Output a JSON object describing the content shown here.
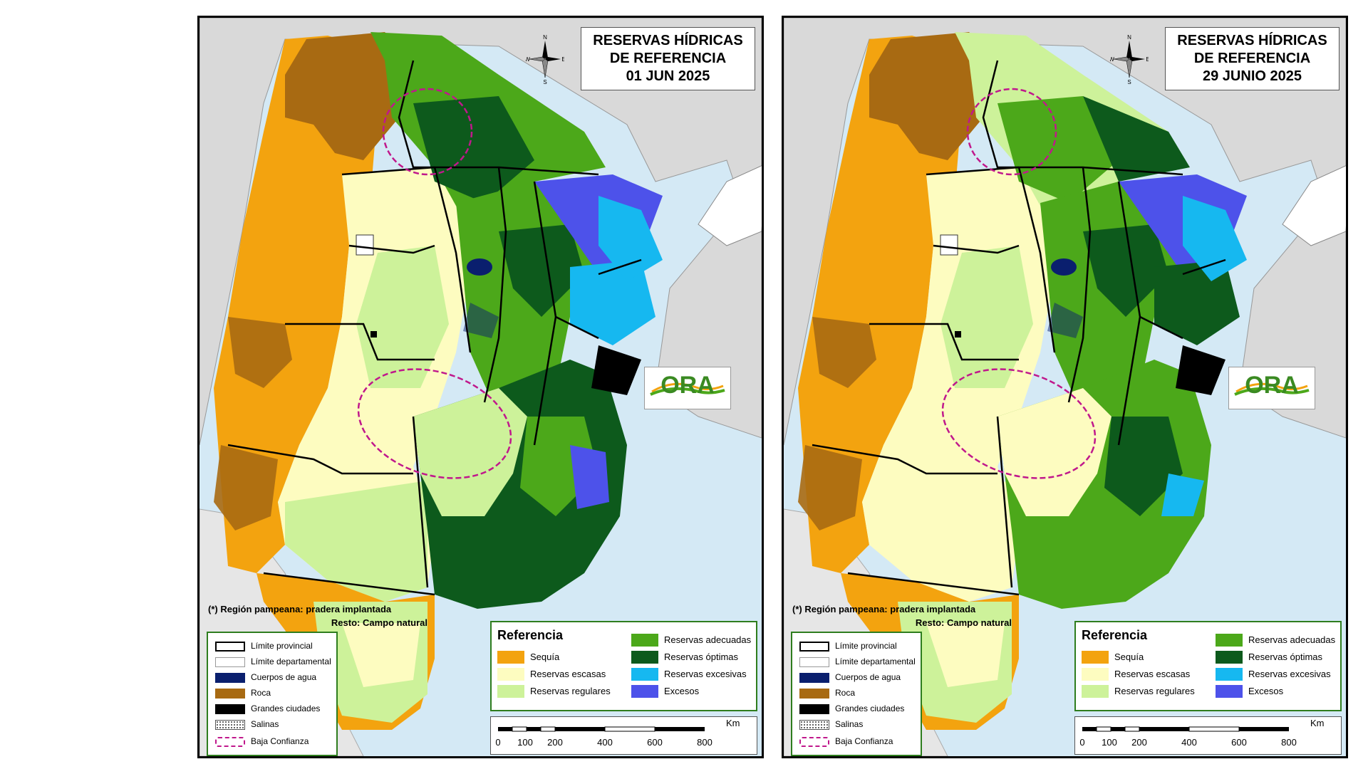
{
  "maps": [
    {
      "title_lines": [
        "RESERVAS HÍDRICAS",
        "DE REFERENCIA",
        "01 JUN 2025"
      ]
    },
    {
      "title_lines": [
        "RESERVAS HÍDRICAS",
        "DE REFERENCIA",
        "29 JUNIO 2025"
      ]
    }
  ],
  "compass": {
    "n": "N",
    "s": "S",
    "e": "E",
    "w": "W"
  },
  "logo_text": "ORA",
  "note": {
    "line1": "(*) Región pampeana: pradera implantada",
    "line2": "Resto: Campo natural"
  },
  "legend_boundaries": [
    {
      "label": "Límite provincial",
      "swatch": "provincial"
    },
    {
      "label": "Límite departamental",
      "swatch": "departamental"
    },
    {
      "label": "Cuerpos de agua",
      "color": "#0a1f6e"
    },
    {
      "label": "Roca",
      "color": "#a86a12"
    },
    {
      "label": "Grandes ciudades",
      "color": "#000000"
    },
    {
      "label": "Salinas",
      "swatch": "dotted"
    },
    {
      "label": "Baja Confianza",
      "swatch": "dashed",
      "color": "#c0188c"
    }
  ],
  "reference": {
    "title": "Referencia",
    "items": [
      {
        "label": "Sequía",
        "color": "#f3a30f"
      },
      {
        "label": "Reservas escasas",
        "color": "#fdfcc0"
      },
      {
        "label": "Reservas regulares",
        "color": "#cdf29a"
      },
      {
        "label": "Reservas adecuadas",
        "color": "#4ca81a"
      },
      {
        "label": "Reservas óptimas",
        "color": "#0d5a1c"
      },
      {
        "label": "Reservas excesivas",
        "color": "#16b8f0"
      },
      {
        "label": "Excesos",
        "color": "#4d52ea"
      }
    ]
  },
  "scale": {
    "unit": "Km",
    "ticks": [
      "0",
      "100",
      "200",
      "400",
      "600",
      "800"
    ]
  }
}
